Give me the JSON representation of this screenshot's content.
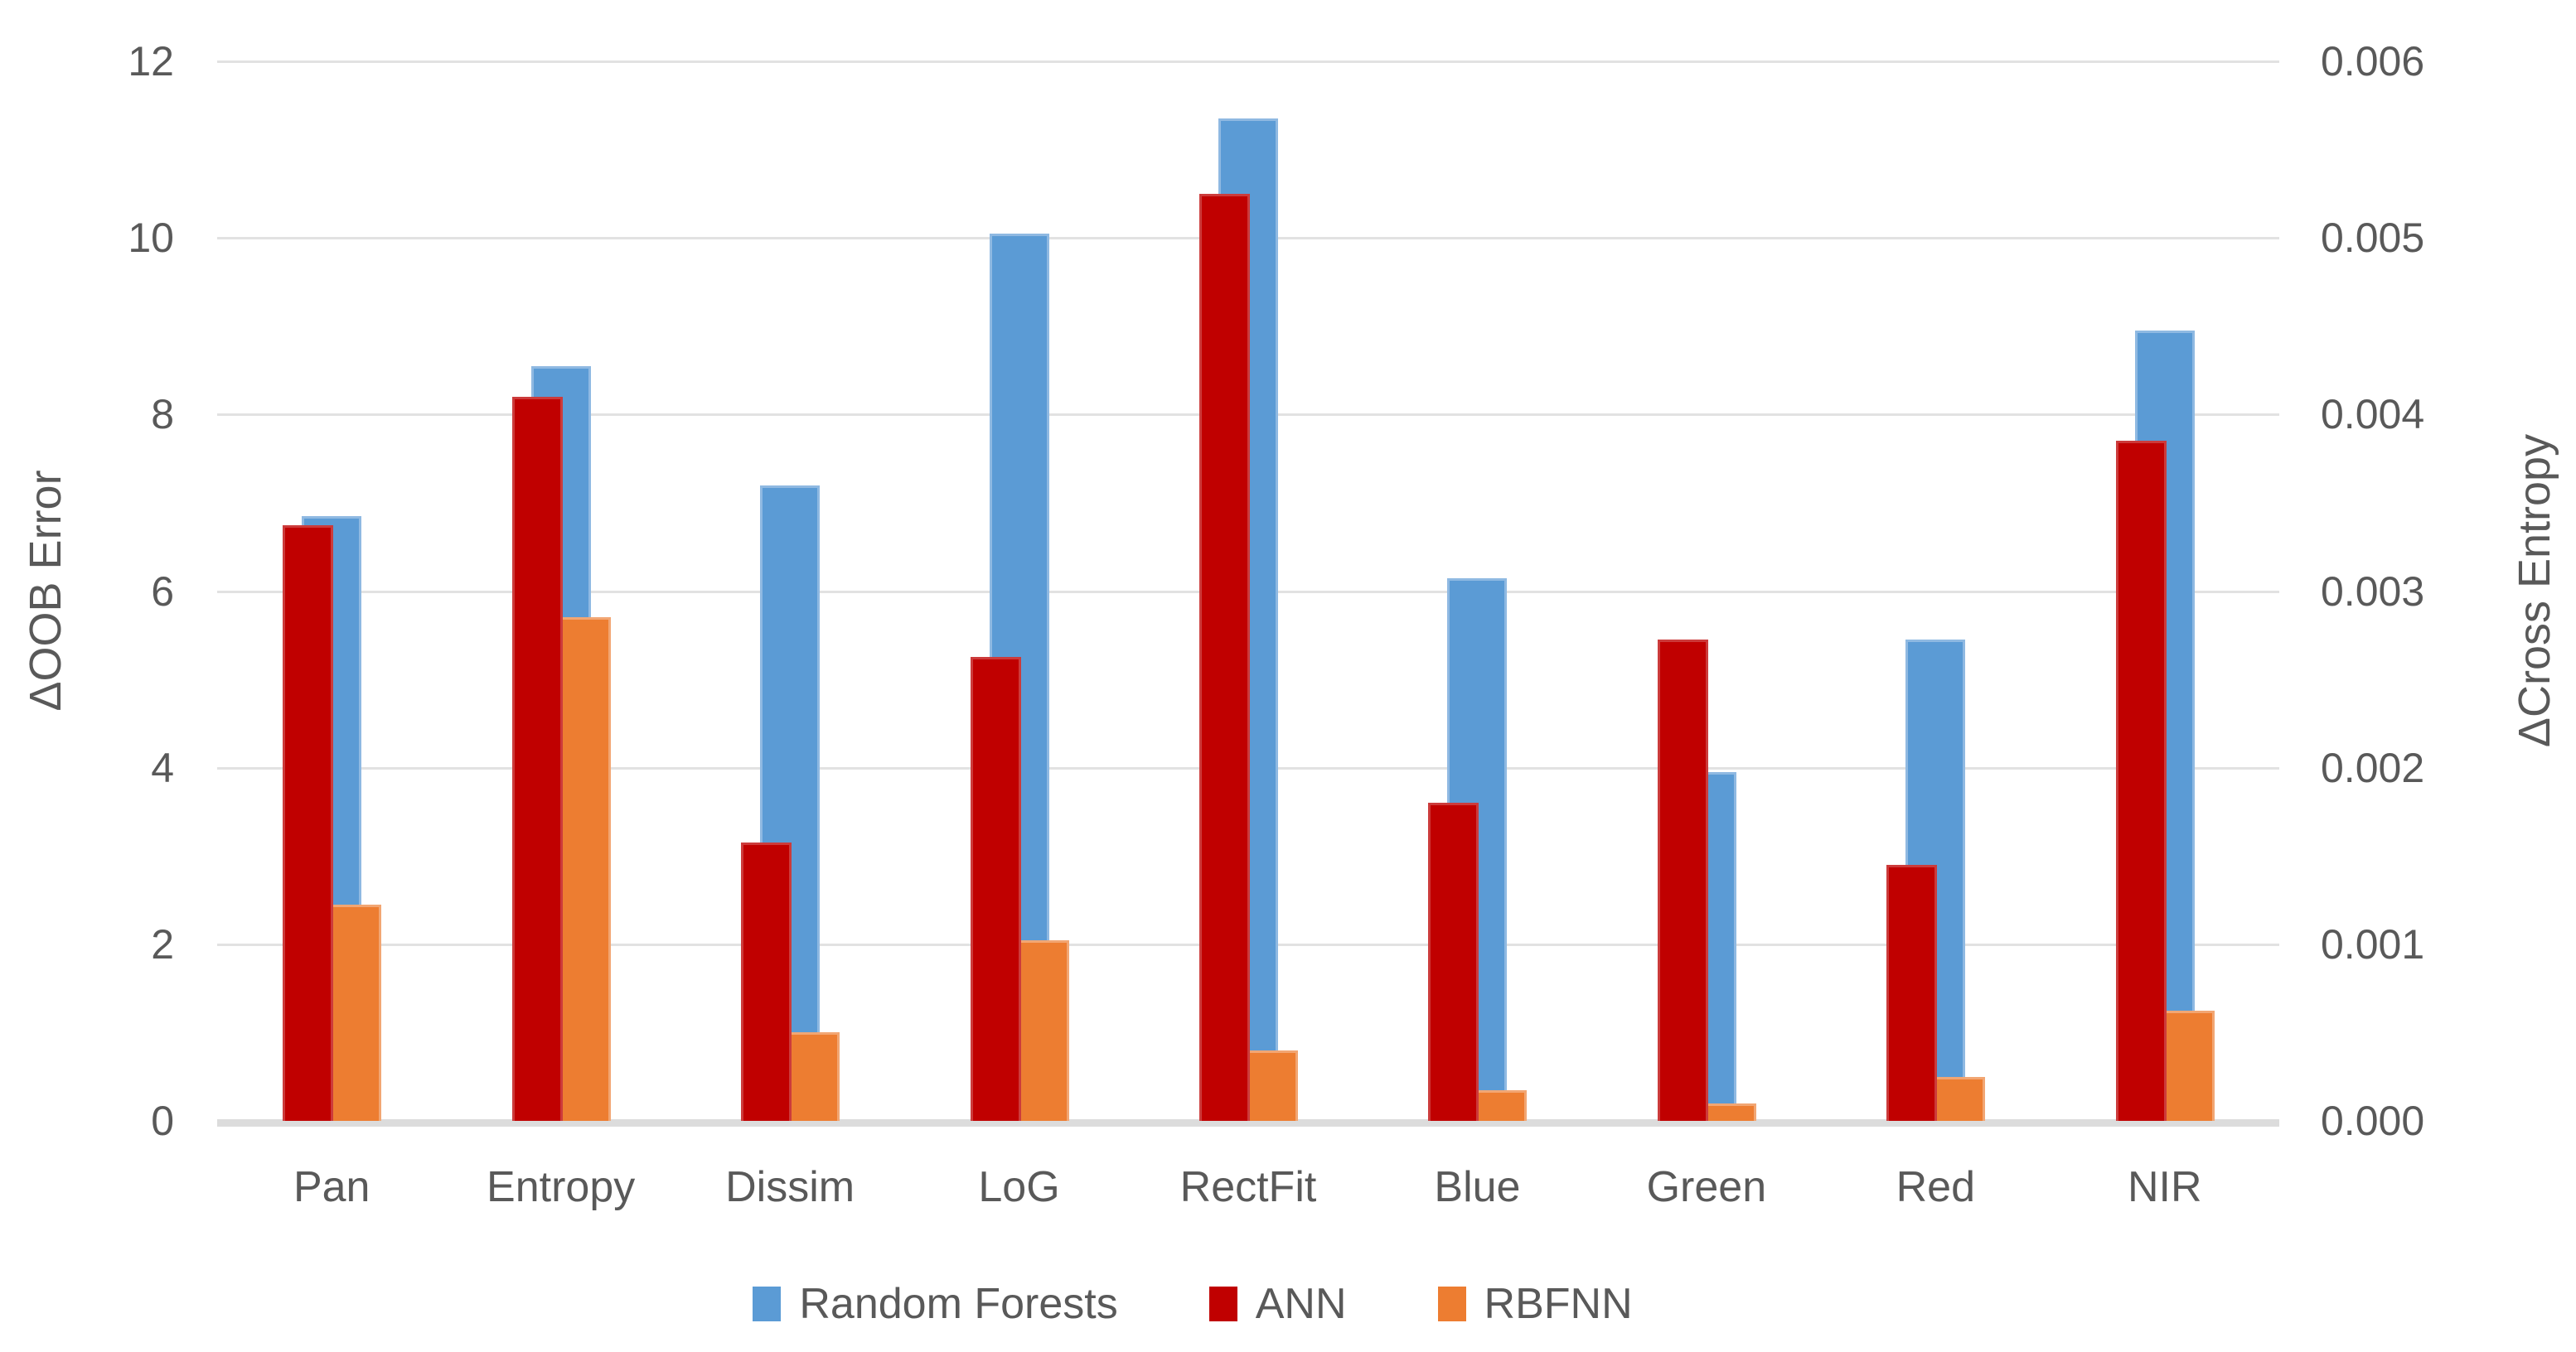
{
  "chart": {
    "left_axis": {
      "title": "ΔOOB Error",
      "min": 0,
      "max": 12,
      "tick_step": 2,
      "ticks": [
        "12",
        "10",
        "8",
        "6",
        "4",
        "2",
        "0"
      ]
    },
    "right_axis": {
      "title": "ΔCross Entropy",
      "min": 0,
      "max": 0.006,
      "tick_step": 0.001,
      "ticks": [
        "0.006",
        "0.005",
        "0.004",
        "0.003",
        "0.002",
        "0.001",
        "0.000"
      ]
    },
    "legend": [
      {
        "label": "Random Forests",
        "color": "#5B9BD5"
      },
      {
        "label": "ANN",
        "color": "#C00000"
      },
      {
        "label": "RBFNN",
        "color": "#ED7D31"
      }
    ],
    "colors": {
      "random_forests": "#5B9BD5",
      "random_forests_border": "#8FB9E2",
      "ann": "#C00000",
      "ann_border": "#CC3B3B",
      "rbfnn": "#ED7D31",
      "rbfnn_border": "#F2A673",
      "text": "#595959",
      "gridline": "#E2E2E2",
      "baseline": "#DCDCDC"
    }
  },
  "chart_data": {
    "type": "bar",
    "title": "",
    "xlabel": "",
    "ylabel_left": "ΔOOB Error",
    "ylabel_right": "ΔCross Entropy",
    "ylim_left": [
      0,
      12
    ],
    "ylim_right": [
      0,
      0.006
    ],
    "grid": true,
    "legend_position": "bottom",
    "axis_note": "dual y-axes share gridlines; right axis value = left axis value / 2000",
    "categories": [
      "Pan",
      "Entropy",
      "Dissim",
      "LoG",
      "RectFit",
      "Blue",
      "Green",
      "Red",
      "NIR"
    ],
    "series": [
      {
        "name": "Random Forests",
        "color": "#5B9BD5",
        "axis": "left",
        "values_oob_axis": [
          6.85,
          8.55,
          7.2,
          10.05,
          11.35,
          6.15,
          3.95,
          5.45,
          8.95
        ],
        "values_cross_entropy_axis": [
          0.003425,
          0.004275,
          0.0036,
          0.005025,
          0.005675,
          0.003075,
          0.001975,
          0.002725,
          0.004475
        ]
      },
      {
        "name": "ANN",
        "color": "#C00000",
        "axis": "right",
        "values_oob_axis": [
          6.75,
          8.2,
          3.15,
          5.25,
          10.5,
          3.6,
          5.45,
          2.9,
          7.7
        ],
        "values_cross_entropy_axis": [
          0.003375,
          0.0041,
          0.001575,
          0.002625,
          0.00525,
          0.0018,
          0.002725,
          0.00145,
          0.00385
        ]
      },
      {
        "name": "RBFNN",
        "color": "#ED7D31",
        "axis": "right",
        "values_oob_axis": [
          2.45,
          5.7,
          1.0,
          2.05,
          0.8,
          0.35,
          0.2,
          0.5,
          1.25
        ],
        "values_cross_entropy_axis": [
          0.001225,
          0.00285,
          0.0005,
          0.001025,
          0.0004,
          0.000175,
          0.0001,
          0.00025,
          0.000625
        ]
      }
    ]
  }
}
